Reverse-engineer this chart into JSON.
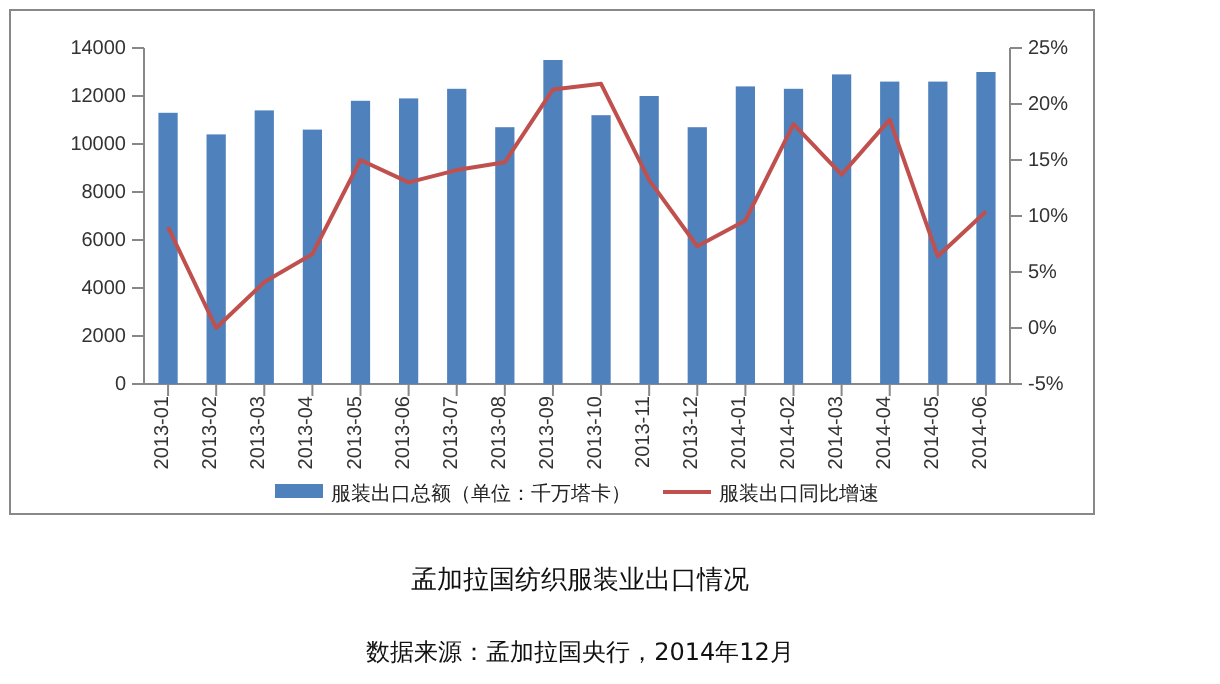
{
  "chart_data": {
    "type": "bar",
    "title": "孟加拉国纺织服装业出口情况",
    "annotations": [
      "数据来源：孟加拉国央行，2014年12月"
    ],
    "categories": [
      "2013-01",
      "2013-02",
      "2013-03",
      "2013-04",
      "2013-05",
      "2013-06",
      "2013-07",
      "2013-08",
      "2013-09",
      "2013-10",
      "2013-11",
      "2013-12",
      "2014-01",
      "2014-02",
      "2014-03",
      "2014-04",
      "2014-05",
      "2014-06"
    ],
    "series": [
      {
        "name": "服装出口总额（单位：千万塔卡）",
        "color": "#4f81bd",
        "values": [
          11300,
          10400,
          11400,
          10600,
          11800,
          11900,
          12300,
          10700,
          13500,
          11200,
          12000,
          10700,
          12400,
          12300,
          12900,
          12600,
          12600,
          13000
        ]
      },
      {
        "name": "服装出口同比增速",
        "type": "line",
        "axis": "y2",
        "color": "#c0504d",
        "values": [
          9.0,
          0.0,
          4.1,
          6.6,
          15.0,
          13.0,
          14.1,
          14.8,
          21.3,
          21.8,
          13.2,
          7.3,
          9.6,
          18.2,
          13.7,
          18.6,
          6.4,
          10.4
        ]
      }
    ],
    "ylim": [
      0,
      14000
    ],
    "yticks": [
      0,
      2000,
      4000,
      6000,
      8000,
      10000,
      12000,
      14000
    ],
    "y2lim": [
      -5,
      25
    ],
    "y2ticks": [
      {
        "value": -5,
        "label": "-5%"
      },
      {
        "value": 0,
        "label": "0%"
      },
      {
        "value": 5,
        "label": "5%"
      },
      {
        "value": 10,
        "label": "10%"
      },
      {
        "value": 15,
        "label": "15%"
      },
      {
        "value": 20,
        "label": "20%"
      },
      {
        "value": 25,
        "label": "25%"
      }
    ],
    "grid": false,
    "legend": "bottom",
    "marker": "none",
    "line_style": "solid"
  }
}
